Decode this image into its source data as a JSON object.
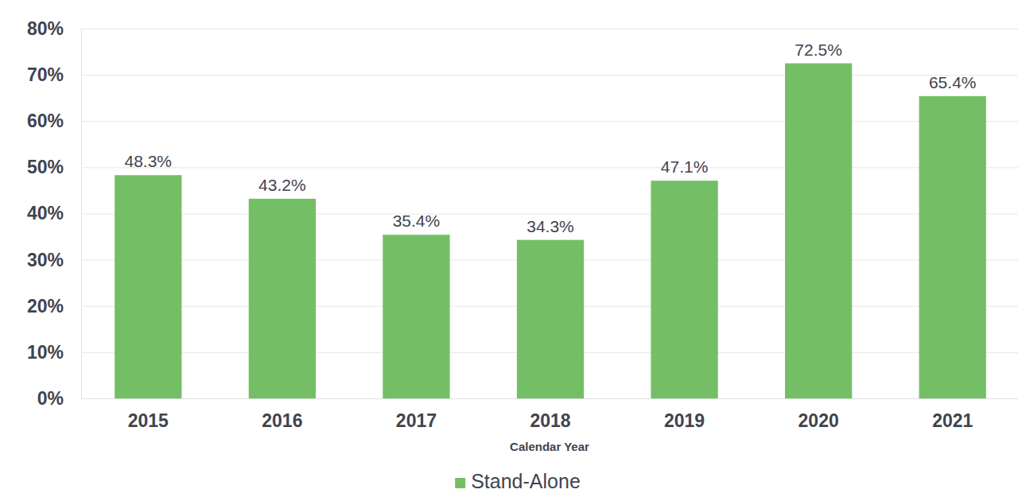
{
  "chart_data": {
    "type": "bar",
    "categories": [
      "2015",
      "2016",
      "2017",
      "2018",
      "2019",
      "2020",
      "2021"
    ],
    "series": [
      {
        "name": "Stand-Alone",
        "color": "#74bf66",
        "values": [
          48.3,
          43.2,
          35.4,
          34.3,
          47.1,
          72.5,
          65.4
        ],
        "value_labels": [
          "48.3%",
          "43.2%",
          "35.4%",
          "34.3%",
          "47.1%",
          "72.5%",
          "65.4%"
        ]
      }
    ],
    "x_label": "Calendar Year",
    "ylim": [
      0,
      80
    ],
    "yticks": [
      {
        "value": 0,
        "label": "0%"
      },
      {
        "value": 10,
        "label": "10%"
      },
      {
        "value": 20,
        "label": "20%"
      },
      {
        "value": 30,
        "label": "30%"
      },
      {
        "value": 40,
        "label": "40%"
      },
      {
        "value": 50,
        "label": "50%"
      },
      {
        "value": 60,
        "label": "60%"
      },
      {
        "value": 70,
        "label": "70%"
      },
      {
        "value": 80,
        "label": "80%"
      }
    ],
    "grid": true,
    "data_labels": true,
    "legend": "bottom"
  }
}
